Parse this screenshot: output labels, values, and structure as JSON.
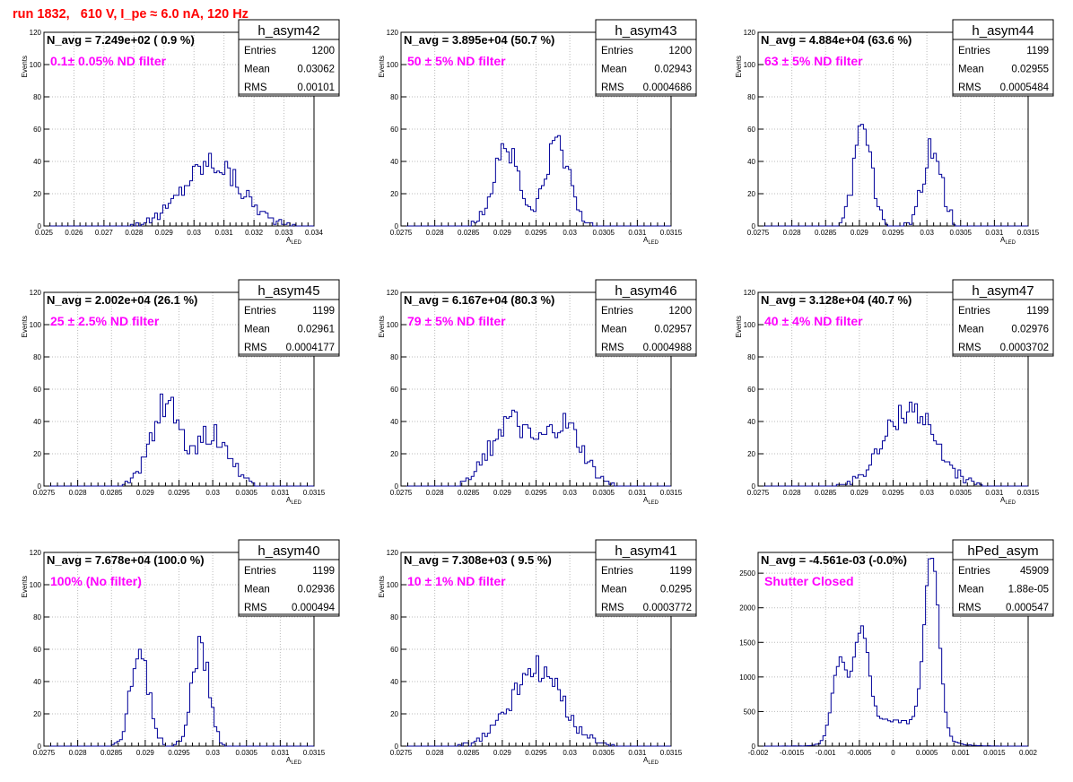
{
  "header": {
    "run_title": "run 1832,   610 V, I_pe ≈ 6.0 nA, 120 Hz"
  },
  "colors": {
    "title": "#ff0000",
    "annotation": "#ff00ff",
    "histogram": "#000099",
    "frame": "#000000"
  },
  "chart_data": [
    {
      "type": "histogram",
      "name": "h_asym42",
      "n_avg_label": "N_avg = 7.249e+02 ( 0.9 %)",
      "filter_label": "0.1± 0.05% ND filter",
      "stats": [
        [
          "Entries",
          "1200"
        ],
        [
          "Mean",
          "0.03062"
        ],
        [
          "RMS",
          "0.00101"
        ]
      ],
      "xlim": [
        0.025,
        0.034
      ],
      "ylim": [
        0,
        120
      ],
      "xticks": [
        "0.025",
        "0.026",
        "0.027",
        "0.028",
        "0.029",
        "0.03",
        "0.031",
        "0.032",
        "0.033",
        "0.034"
      ],
      "yticks": [
        "0",
        "20",
        "40",
        "60",
        "80",
        "100",
        "120"
      ],
      "xlabel": "A_LED",
      "ylabel": "Events",
      "peaks": [
        {
          "c": 0.0306,
          "s": 0.00095,
          "a": 40
        }
      ]
    },
    {
      "type": "histogram",
      "name": "h_asym43",
      "n_avg_label": "N_avg = 3.895e+04 (50.7 %)",
      "filter_label": "50 ± 5% ND filter",
      "stats": [
        [
          "Entries",
          "1200"
        ],
        [
          "Mean",
          "0.02943"
        ],
        [
          "RMS",
          "0.0004686"
        ]
      ],
      "xlim": [
        0.0275,
        0.0315
      ],
      "ylim": [
        0,
        120
      ],
      "xticks": [
        "0.0275",
        "0.028",
        "0.0285",
        "0.029",
        "0.0295",
        "0.03",
        "0.0305",
        "0.031",
        "0.0315"
      ],
      "yticks": [
        "0",
        "20",
        "40",
        "60",
        "80",
        "100",
        "120"
      ],
      "xlabel": "A_LED",
      "ylabel": "Events",
      "peaks": [
        {
          "c": 0.02905,
          "s": 0.00018,
          "a": 50
        },
        {
          "c": 0.02982,
          "s": 0.00018,
          "a": 50
        }
      ]
    },
    {
      "type": "histogram",
      "name": "h_asym44",
      "n_avg_label": "N_avg = 4.884e+04 (63.6 %)",
      "filter_label": "63 ± 5% ND filter",
      "stats": [
        [
          "Entries",
          "1199"
        ],
        [
          "Mean",
          "0.02955"
        ],
        [
          "RMS",
          "0.0005484"
        ]
      ],
      "xlim": [
        0.0275,
        0.0315
      ],
      "ylim": [
        0,
        120
      ],
      "xticks": [
        "0.0275",
        "0.028",
        "0.0285",
        "0.029",
        "0.0295",
        "0.03",
        "0.0305",
        "0.031",
        "0.0315"
      ],
      "yticks": [
        "0",
        "20",
        "40",
        "60",
        "80",
        "100",
        "120"
      ],
      "xlabel": "A_LED",
      "ylabel": "Events",
      "peaks": [
        {
          "c": 0.02905,
          "s": 0.00013,
          "a": 58
        },
        {
          "c": 0.03008,
          "s": 0.00014,
          "a": 48
        }
      ]
    },
    {
      "type": "histogram",
      "name": "h_asym45",
      "n_avg_label": "N_avg = 2.002e+04 (26.1 %)",
      "filter_label": "25 ± 2.5% ND filter",
      "stats": [
        [
          "Entries",
          "1199"
        ],
        [
          "Mean",
          "0.02961"
        ],
        [
          "RMS",
          "0.0004177"
        ]
      ],
      "xlim": [
        0.0275,
        0.0315
      ],
      "ylim": [
        0,
        120
      ],
      "xticks": [
        "0.0275",
        "0.028",
        "0.0285",
        "0.029",
        "0.0295",
        "0.03",
        "0.0305",
        "0.031",
        "0.0315"
      ],
      "yticks": [
        "0",
        "20",
        "40",
        "60",
        "80",
        "100",
        "120"
      ],
      "xlabel": "A_LED",
      "ylabel": "Events",
      "peaks": [
        {
          "c": 0.0293,
          "s": 0.00022,
          "a": 50
        },
        {
          "c": 0.03,
          "s": 0.00025,
          "a": 32
        }
      ]
    },
    {
      "type": "histogram",
      "name": "h_asym46",
      "n_avg_label": "N_avg = 6.167e+04 (80.3 %)",
      "filter_label": "79 ± 5% ND filter",
      "stats": [
        [
          "Entries",
          "1200"
        ],
        [
          "Mean",
          "0.02957"
        ],
        [
          "RMS",
          "0.0004988"
        ]
      ],
      "xlim": [
        0.0275,
        0.0315
      ],
      "ylim": [
        0,
        120
      ],
      "xticks": [
        "0.0275",
        "0.028",
        "0.0285",
        "0.029",
        "0.0295",
        "0.03",
        "0.0305",
        "0.031",
        "0.0315"
      ],
      "yticks": [
        "0",
        "20",
        "40",
        "60",
        "80",
        "100",
        "120"
      ],
      "xlabel": "A_LED",
      "ylabel": "Events",
      "peaks": [
        {
          "c": 0.0291,
          "s": 0.00028,
          "a": 40
        },
        {
          "c": 0.0299,
          "s": 0.00028,
          "a": 38
        }
      ]
    },
    {
      "type": "histogram",
      "name": "h_asym47",
      "n_avg_label": "N_avg = 3.128e+04 (40.7 %)",
      "filter_label": "40 ± 4% ND filter",
      "stats": [
        [
          "Entries",
          "1199"
        ],
        [
          "Mean",
          "0.02976"
        ],
        [
          "RMS",
          "0.0003702"
        ]
      ],
      "xlim": [
        0.0275,
        0.0315
      ],
      "ylim": [
        0,
        120
      ],
      "xticks": [
        "0.0275",
        "0.028",
        "0.0285",
        "0.029",
        "0.0295",
        "0.03",
        "0.0305",
        "0.031",
        "0.0315"
      ],
      "yticks": [
        "0",
        "20",
        "40",
        "60",
        "80",
        "100",
        "120"
      ],
      "xlabel": "A_LED",
      "ylabel": "Events",
      "peaks": [
        {
          "c": 0.02975,
          "s": 0.00037,
          "a": 48
        }
      ]
    },
    {
      "type": "histogram",
      "name": "h_asym40",
      "n_avg_label": "N_avg = 7.678e+04 (100.0 %)",
      "filter_label": "100% (No filter)",
      "stats": [
        [
          "Entries",
          "1199"
        ],
        [
          "Mean",
          "0.02936"
        ],
        [
          "RMS",
          "0.000494"
        ]
      ],
      "xlim": [
        0.0275,
        0.0315
      ],
      "ylim": [
        0,
        120
      ],
      "xticks": [
        "0.0275",
        "0.028",
        "0.0285",
        "0.029",
        "0.0295",
        "0.03",
        "0.0305",
        "0.031",
        "0.0315"
      ],
      "yticks": [
        "0",
        "20",
        "40",
        "60",
        "80",
        "100",
        "120"
      ],
      "xlabel": "A_LED",
      "ylabel": "Events",
      "peaks": [
        {
          "c": 0.02892,
          "s": 0.00013,
          "a": 62
        },
        {
          "c": 0.02982,
          "s": 0.00013,
          "a": 60
        }
      ]
    },
    {
      "type": "histogram",
      "name": "h_asym41",
      "n_avg_label": "N_avg = 7.308e+03 ( 9.5 %)",
      "filter_label": "10 ± 1% ND filter",
      "stats": [
        [
          "Entries",
          "1199"
        ],
        [
          "Mean",
          "0.0295"
        ],
        [
          "RMS",
          "0.0003772"
        ]
      ],
      "xlim": [
        0.0275,
        0.0315
      ],
      "ylim": [
        0,
        120
      ],
      "xticks": [
        "0.0275",
        "0.028",
        "0.0285",
        "0.029",
        "0.0295",
        "0.03",
        "0.0305",
        "0.031",
        "0.0315"
      ],
      "yticks": [
        "0",
        "20",
        "40",
        "60",
        "80",
        "100",
        "120"
      ],
      "xlabel": "A_LED",
      "ylabel": "Events",
      "peaks": [
        {
          "c": 0.0295,
          "s": 0.00038,
          "a": 47
        }
      ]
    },
    {
      "type": "histogram",
      "name": "hPed_asym",
      "n_avg_label": "N_avg = -4.561e-03 (-0.0%)",
      "filter_label": "Shutter Closed",
      "stats": [
        [
          "Entries",
          "45909"
        ],
        [
          "Mean",
          "1.88e-05"
        ],
        [
          "RMS",
          "0.000547"
        ]
      ],
      "xlim": [
        -0.002,
        0.002
      ],
      "ylim": [
        0,
        2800
      ],
      "xticks": [
        "-0.002",
        "-0.0015",
        "-0.001",
        "-0.0005",
        "0",
        "0.0005",
        "0.001",
        "0.0015",
        "0.002"
      ],
      "yticks": [
        "0",
        "500",
        "1000",
        "1500",
        "2000",
        "2500"
      ],
      "xlabel": "",
      "ylabel": "",
      "peaks": [
        {
          "c": -0.00079,
          "s": 0.00011,
          "a": 1150
        },
        {
          "c": -0.00047,
          "s": 0.00011,
          "a": 1480
        },
        {
          "c": 0.00057,
          "s": 0.00011,
          "a": 2600
        },
        {
          "c": 0.0,
          "s": 0.00045,
          "a": 370
        }
      ]
    }
  ]
}
